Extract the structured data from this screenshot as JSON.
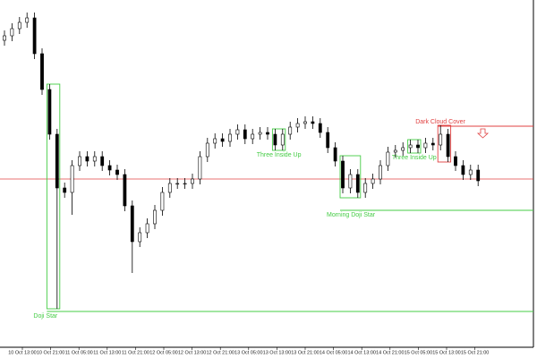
{
  "chart_data": {
    "type": "candlestick",
    "ylim": [
      12,
      400
    ],
    "xlabels": [
      "10 Oct 13:00",
      "10 Oct 21:00",
      "11 Oct 05:00",
      "11 Oct 13:00",
      "11 Oct 21:00",
      "12 Oct 05:00",
      "12 Oct 13:00",
      "12 Oct 21:00",
      "13 Oct 05:00",
      "13 Oct 13:00",
      "13 Oct 21:00",
      "14 Oct 05:00",
      "14 Oct 13:00",
      "14 Oct 21:00",
      "15 Oct 05:00",
      "15 Oct 13:00",
      "15 Oct 21:00"
    ],
    "open": [
      355,
      360,
      368,
      375,
      380,
      340,
      300,
      250,
      190,
      185,
      215,
      225,
      220,
      225,
      215,
      210,
      205,
      170,
      130,
      140,
      150,
      165,
      185,
      195,
      195,
      195,
      200,
      225,
      240,
      245,
      242,
      250,
      255,
      245,
      250,
      252,
      250,
      238,
      250,
      258,
      262,
      264,
      262,
      252,
      235,
      220,
      190,
      205,
      185,
      195,
      200,
      215,
      230,
      232,
      235,
      238,
      235,
      240,
      238,
      250,
      225,
      215,
      205,
      210
    ],
    "high": [
      366,
      374,
      381,
      386,
      386,
      346,
      306,
      256,
      196,
      221,
      231,
      231,
      231,
      231,
      221,
      216,
      211,
      176,
      146,
      156,
      171,
      191,
      201,
      201,
      201,
      206,
      231,
      246,
      251,
      251,
      256,
      261,
      261,
      256,
      258,
      258,
      256,
      256,
      264,
      268,
      270,
      270,
      268,
      258,
      241,
      226,
      211,
      211,
      201,
      206,
      221,
      236,
      238,
      241,
      244,
      244,
      246,
      246,
      260,
      256,
      231,
      221,
      216,
      216
    ],
    "low": [
      349,
      354,
      362,
      369,
      334,
      294,
      244,
      55,
      179,
      160,
      209,
      214,
      214,
      209,
      204,
      199,
      164,
      95,
      124,
      134,
      144,
      159,
      179,
      189,
      189,
      189,
      194,
      219,
      234,
      236,
      236,
      244,
      239,
      239,
      244,
      244,
      232,
      232,
      244,
      252,
      256,
      256,
      246,
      229,
      214,
      184,
      184,
      179,
      179,
      189,
      194,
      209,
      224,
      226,
      229,
      229,
      229,
      232,
      232,
      219,
      209,
      199,
      199,
      192
    ],
    "close": [
      360,
      368,
      375,
      380,
      340,
      300,
      250,
      190,
      185,
      215,
      225,
      220,
      225,
      215,
      210,
      205,
      170,
      130,
      140,
      150,
      165,
      185,
      195,
      195,
      195,
      200,
      225,
      240,
      245,
      242,
      250,
      255,
      245,
      250,
      252,
      250,
      238,
      250,
      258,
      262,
      264,
      262,
      252,
      235,
      220,
      190,
      205,
      185,
      195,
      200,
      215,
      230,
      232,
      235,
      238,
      235,
      240,
      238,
      250,
      225,
      215,
      205,
      210,
      198
    ],
    "price_line": {
      "value": 200,
      "color": "#e04040"
    },
    "patterns": [
      {
        "text": "Doji Star",
        "color": "#44cc44",
        "candles": [
          6,
          7
        ],
        "level": 52
      },
      {
        "text": "Three Inside Up",
        "color": "#44cc44",
        "candles": [
          36,
          37
        ]
      },
      {
        "text": "Morning Doji Star",
        "color": "#44cc44",
        "candles": [
          45,
          47
        ],
        "level": 165
      },
      {
        "text": "Three Inside Up",
        "color": "#44cc44",
        "candles": [
          54,
          55
        ]
      },
      {
        "text": "Dark Cloud Cover",
        "color": "#e04040",
        "candles": [
          58,
          59
        ],
        "level": 259
      }
    ]
  }
}
